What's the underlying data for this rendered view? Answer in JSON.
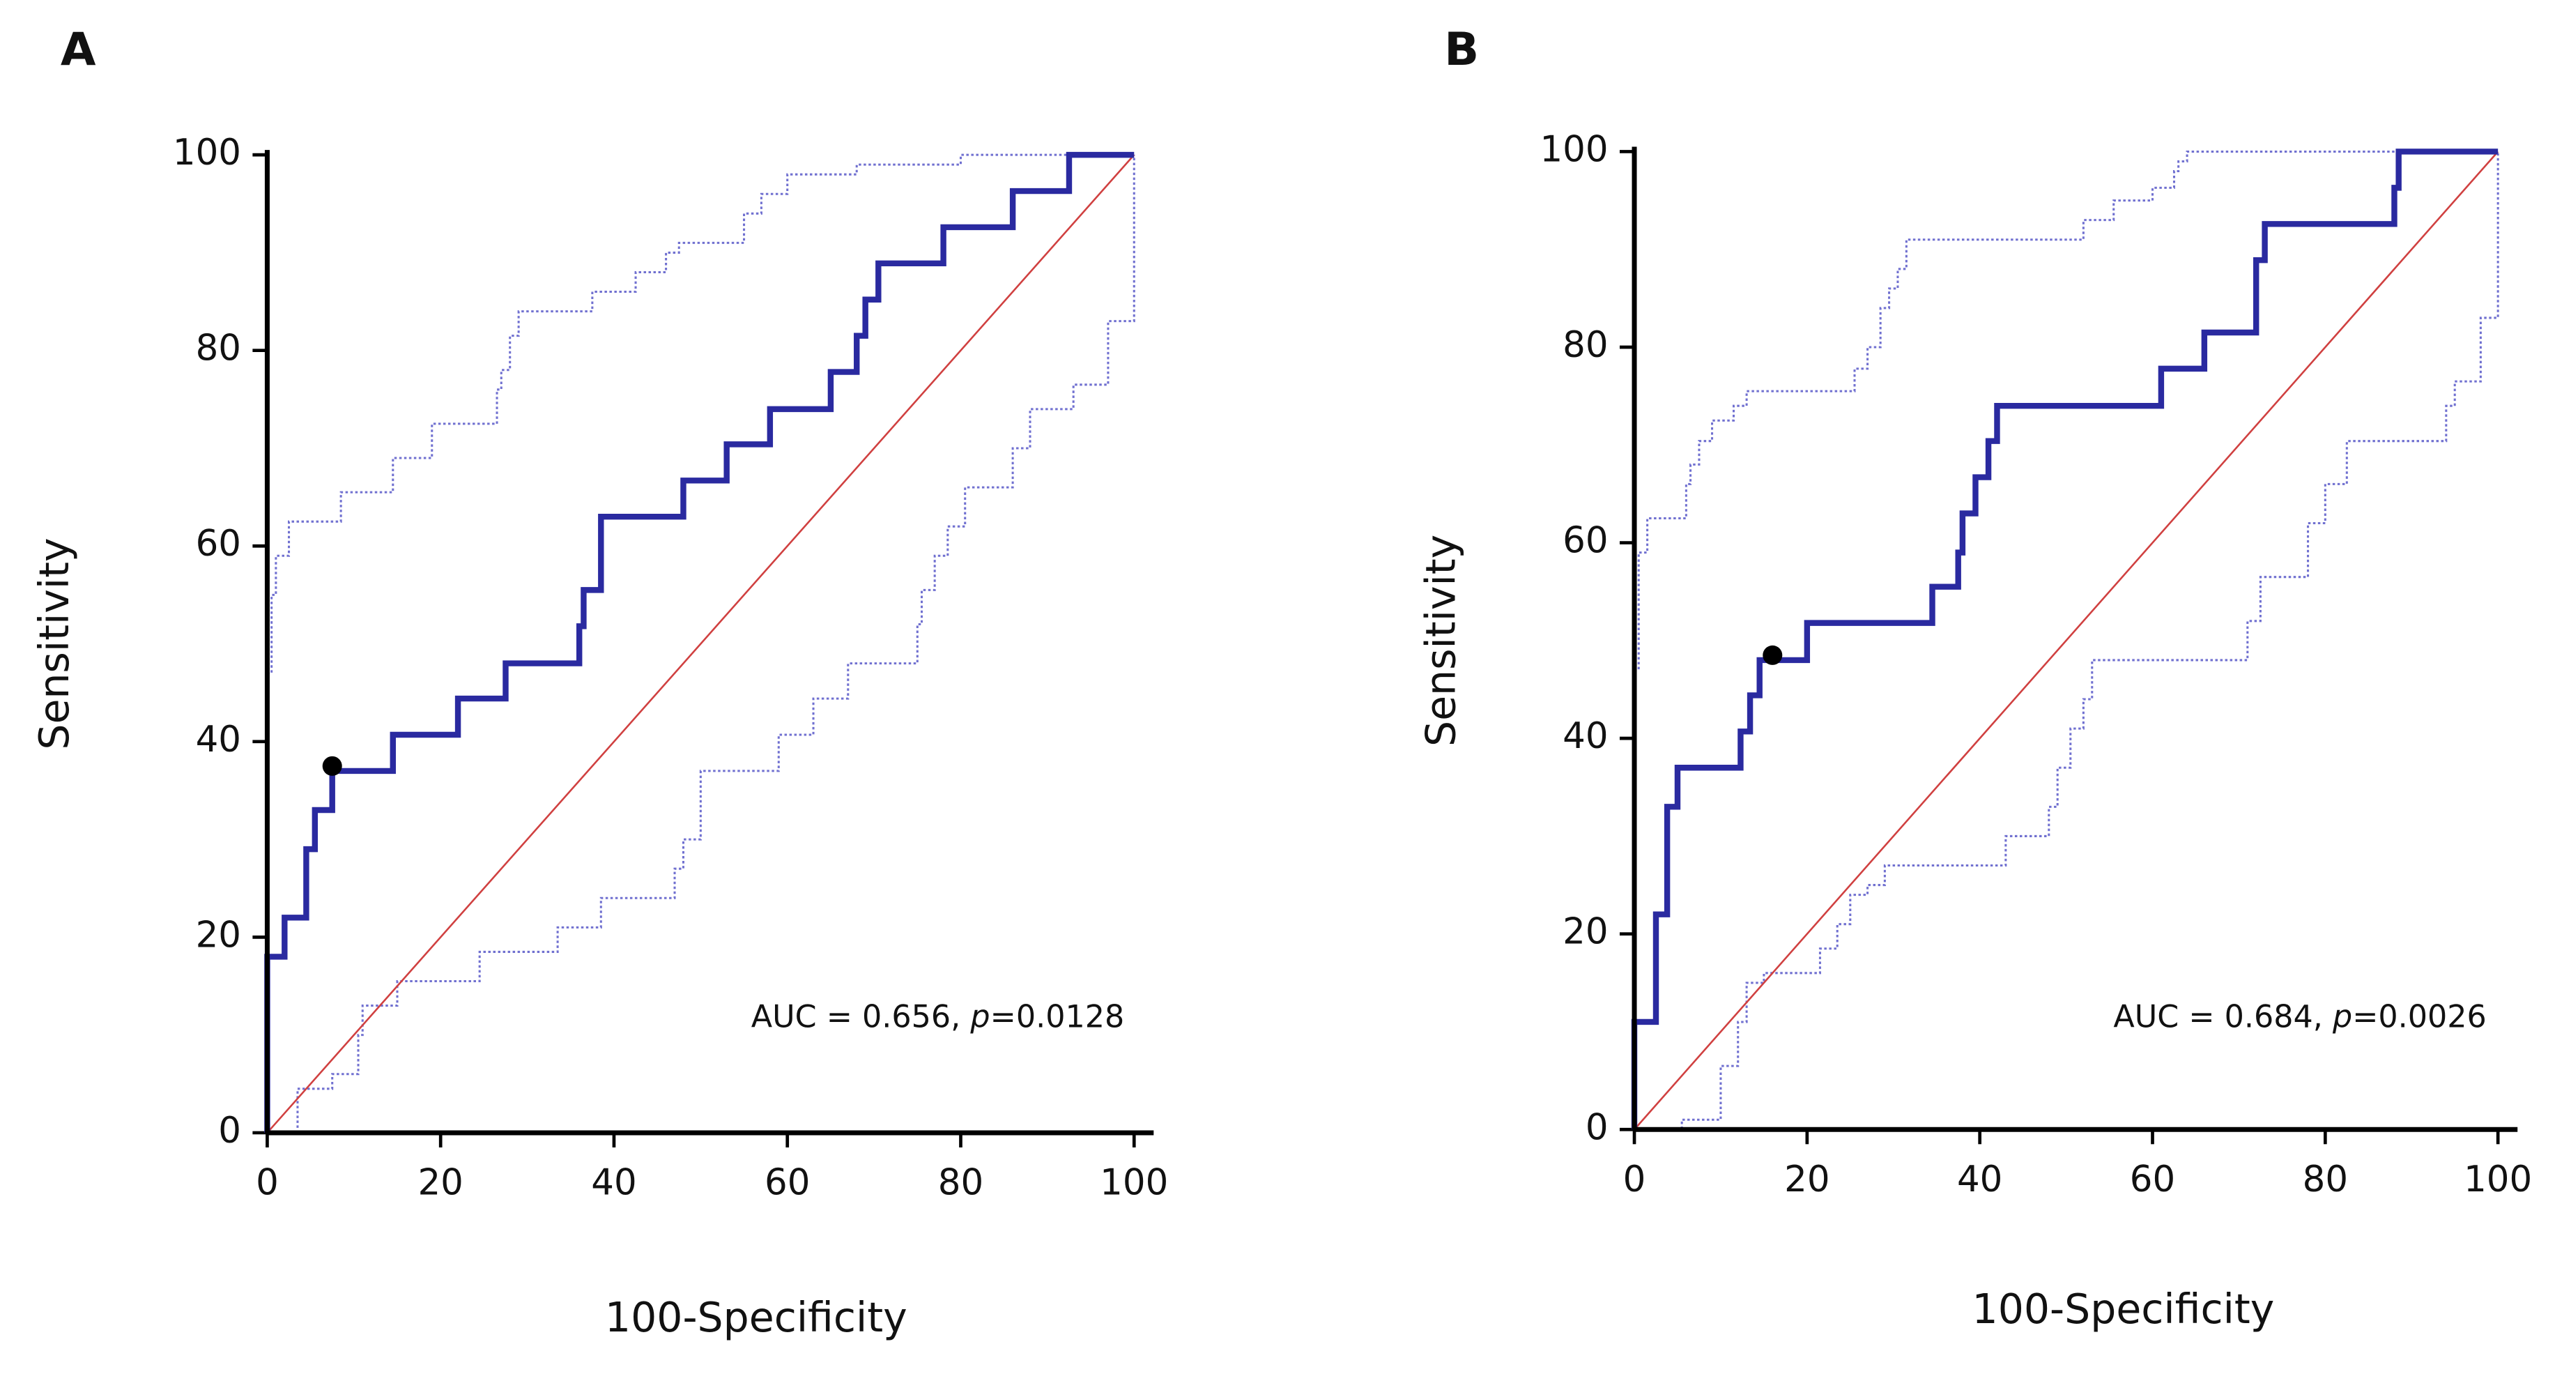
{
  "chart_data": [
    {
      "type": "line",
      "title": "A",
      "xlabel": "100-Specificity",
      "ylabel": "Sensitivity",
      "annotation": [
        "AUC = 0.656, ",
        "p",
        "=0.0128"
      ],
      "xlim": [
        0,
        100
      ],
      "ylim": [
        0,
        100
      ],
      "xticks": [
        0,
        20,
        40,
        60,
        80,
        100
      ],
      "yticks": [
        0,
        20,
        40,
        60,
        80,
        100
      ],
      "series": [
        {
          "color": "#7070d0",
          "line_style": "dotted",
          "step": true,
          "x": [
            0,
            0.5,
            1,
            2.5,
            8.5,
            14.5,
            19,
            26.5,
            27,
            28,
            29,
            37.5,
            42.5,
            46,
            47.5,
            55,
            57,
            60,
            68,
            80,
            100
          ],
          "values": [
            47,
            55,
            59,
            62.5,
            65.5,
            69,
            72.5,
            76,
            78,
            81.5,
            84,
            86,
            88,
            90,
            91,
            94,
            96,
            98,
            99,
            100,
            100
          ]
        },
        {
          "color": "#7070d0",
          "line_style": "dotted",
          "step": true,
          "x": [
            3.5,
            3.5,
            7.5,
            10.5,
            11,
            15,
            24.5,
            33.5,
            38.5,
            47,
            48,
            50,
            59,
            63,
            67,
            75,
            75.5,
            77,
            78.5,
            80.5,
            86,
            88,
            93,
            97,
            100
          ],
          "values": [
            0,
            4.5,
            6,
            10,
            13,
            15.5,
            18.5,
            21,
            24,
            27,
            30,
            37,
            40.7,
            44.4,
            48,
            52,
            55.5,
            59,
            62,
            66,
            70,
            74,
            76.5,
            83,
            100
          ]
        },
        {
          "color": "#d04040",
          "line_style": "thin",
          "step": false,
          "x": [
            0,
            100
          ],
          "values": [
            0,
            100
          ]
        },
        {
          "color": "#2a2aa0",
          "line_style": "thick",
          "step": true,
          "x": [
            0,
            0,
            2,
            4.5,
            5.5,
            7.5,
            14.5,
            22,
            27.5,
            36,
            36.5,
            38.5,
            48,
            53,
            58,
            65,
            68,
            69,
            70.5,
            78,
            86,
            92.5,
            100
          ],
          "values": [
            0,
            18,
            22,
            29,
            33,
            37,
            40.7,
            44.4,
            48,
            51.8,
            55.5,
            63,
            66.7,
            70.4,
            74,
            77.8,
            81.5,
            85.2,
            88.9,
            92.6,
            96.3,
            100,
            100
          ]
        }
      ],
      "marker": {
        "x": 7.5,
        "y": 37.5,
        "color": "#000000"
      }
    },
    {
      "type": "line",
      "title": "B",
      "xlabel": "100-Specificity",
      "ylabel": "Sensitivity",
      "annotation": [
        "AUC = 0.684, ",
        "p",
        "=0.0026"
      ],
      "xlim": [
        0,
        100
      ],
      "ylim": [
        0,
        100
      ],
      "xticks": [
        0,
        20,
        40,
        60,
        80,
        100
      ],
      "yticks": [
        0,
        20,
        40,
        60,
        80,
        100
      ],
      "series": [
        {
          "color": "#7070d0",
          "line_style": "dotted",
          "step": true,
          "x": [
            0,
            0.5,
            1.5,
            6,
            6.5,
            7.5,
            9,
            11.5,
            13,
            25.5,
            27,
            28.5,
            29.5,
            30.5,
            31.5,
            52,
            55.5,
            60,
            62.5,
            63,
            64,
            100
          ],
          "values": [
            47,
            59,
            62.5,
            66,
            68,
            70.4,
            72.5,
            74,
            75.5,
            77.8,
            80,
            84,
            86,
            88,
            91,
            93,
            95,
            96.3,
            98,
            99,
            100,
            100
          ]
        },
        {
          "color": "#7070d0",
          "line_style": "dotted",
          "step": true,
          "x": [
            5,
            5.5,
            10,
            12,
            13,
            15,
            21.5,
            23.5,
            25,
            27,
            29,
            43,
            48,
            49,
            50.5,
            52,
            53,
            71,
            72.5,
            78,
            80,
            82.5,
            94,
            95,
            98,
            100
          ],
          "values": [
            0,
            1,
            6.5,
            11,
            15,
            16,
            18.5,
            21,
            24,
            25,
            27,
            30,
            33,
            37,
            41,
            44,
            48,
            52,
            56.5,
            62,
            66,
            70.4,
            74,
            76.5,
            83,
            100
          ]
        },
        {
          "color": "#d04040",
          "line_style": "thin",
          "step": false,
          "x": [
            0,
            100
          ],
          "values": [
            0,
            100
          ]
        },
        {
          "color": "#2a2aa0",
          "line_style": "thick",
          "step": true,
          "x": [
            0,
            0,
            2.5,
            3.8,
            5,
            12.3,
            13.4,
            14.5,
            16.4,
            20,
            34.5,
            37.5,
            38,
            39.5,
            41,
            42,
            61,
            66,
            72,
            73,
            88,
            88.5,
            100
          ],
          "values": [
            0,
            11,
            22,
            33,
            37,
            40.7,
            44.4,
            48,
            48,
            51.8,
            55.5,
            59,
            63,
            66.7,
            70.4,
            74,
            77.8,
            81.5,
            88.9,
            92.6,
            96.3,
            100,
            100
          ]
        }
      ],
      "marker": {
        "x": 16,
        "y": 48.5,
        "color": "#000000"
      }
    }
  ]
}
